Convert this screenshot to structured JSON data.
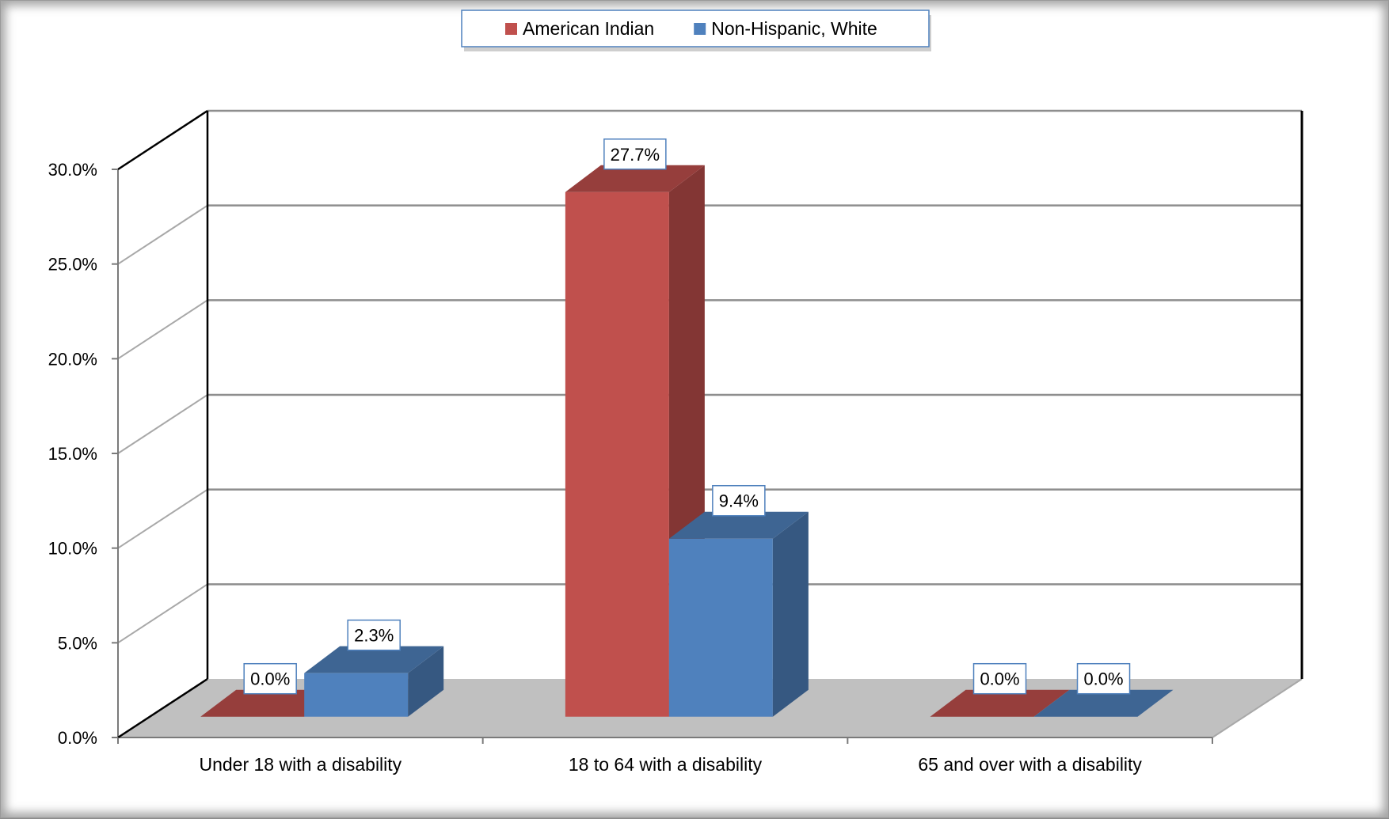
{
  "chart_data": {
    "type": "bar",
    "title": "",
    "xlabel": "",
    "ylabel": "",
    "categories": [
      "Under 18 with a disability",
      "18 to 64 with a disability",
      "65 and over with a disability"
    ],
    "series": [
      {
        "name": "American Indian",
        "values": [
          0.0,
          27.7,
          0.0
        ],
        "labels": [
          "0.0%",
          "27.7%",
          "0.0%"
        ]
      },
      {
        "name": "Non-Hispanic, White",
        "values": [
          2.3,
          9.4,
          0.0
        ],
        "labels": [
          "2.3%",
          "9.4%",
          "0.0%"
        ]
      }
    ],
    "ylim": [
      0,
      30
    ],
    "yticks": [
      0,
      5,
      10,
      15,
      20,
      25,
      30
    ],
    "ytick_labels": [
      "0.0%",
      "5.0%",
      "10.0%",
      "15.0%",
      "20.0%",
      "25.0%",
      "30.0%"
    ],
    "grid": true,
    "legend_position": "top-center",
    "three_d": true,
    "colors": {
      "American Indian": "#c0504d",
      "Non-Hispanic, White": "#4f81bd",
      "floor": "#c0c0c0",
      "gridline": "#8e8e8e"
    }
  }
}
